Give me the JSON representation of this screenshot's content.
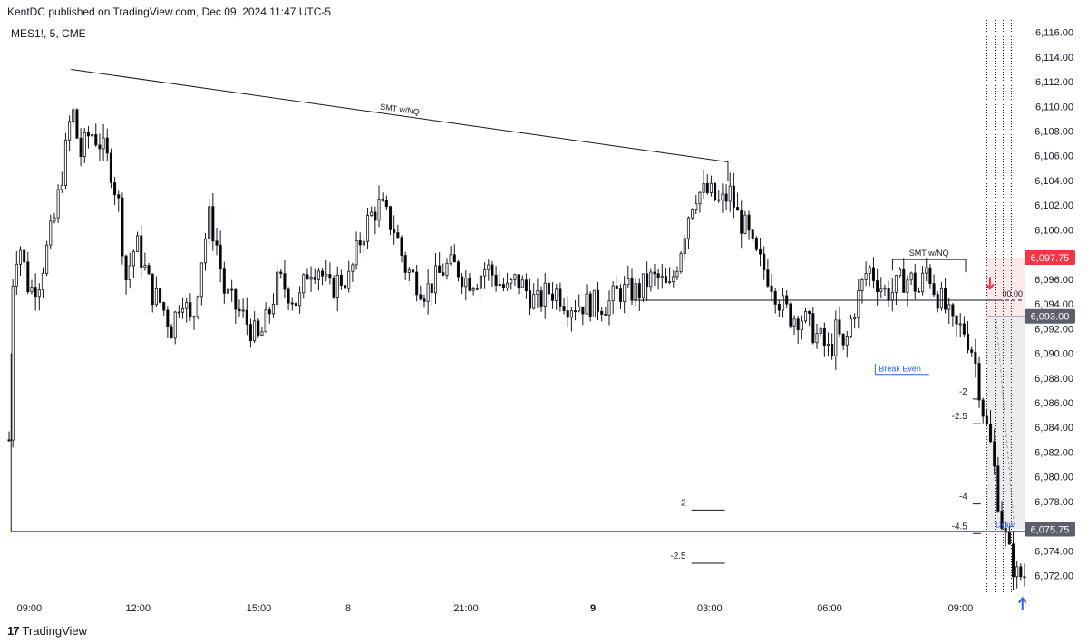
{
  "header": {
    "publisher_line": "KentDC published on TradingView.com, Dec 09, 2024 11:47 UTC-5",
    "symbol_line": "MES1!, 5, CME"
  },
  "footer": {
    "logo_mark": "17",
    "brand": "TradingView"
  },
  "colors": {
    "bull": "#ffffff",
    "bear": "#000000",
    "wick": "#131722",
    "blue_line": "#2962ff",
    "red_label": "#f23645",
    "gray_label": "#5d606b"
  },
  "chart_data": {
    "type": "candlestick",
    "symbol": "MES1!",
    "interval": "5",
    "exchange": "CME",
    "ylim": [
      6070.5,
      6117
    ],
    "y_ticks": [
      6116,
      6114,
      6112,
      6110,
      6108,
      6106,
      6104,
      6102,
      6100,
      6098,
      6096,
      6094,
      6092,
      6090,
      6088,
      6086,
      6084,
      6082,
      6080,
      6078,
      6074,
      6072
    ],
    "y_tick_labels": [
      "6,116.00",
      "6,114.00",
      "6,112.00",
      "6,110.00",
      "6,108.00",
      "6,106.00",
      "6,104.00",
      "6,102.00",
      "6,100.00",
      "6,098.00",
      "6,096.00",
      "6,094.00",
      "6,092.00",
      "6,090.00",
      "6,088.00",
      "6,086.00",
      "6,084.00",
      "6,082.00",
      "6,080.00",
      "6,078.00",
      "6,074.00",
      "6,072.00"
    ],
    "x_labels": [
      {
        "label": "09:00",
        "t": 0.02,
        "bold": false
      },
      {
        "label": "12:00",
        "t": 0.127,
        "bold": false
      },
      {
        "label": "15:00",
        "t": 0.246,
        "bold": false
      },
      {
        "label": "8",
        "t": 0.334,
        "bold": false
      },
      {
        "label": "21:00",
        "t": 0.45,
        "bold": false
      },
      {
        "label": "9",
        "t": 0.575,
        "bold": true
      },
      {
        "label": "03:00",
        "t": 0.69,
        "bold": false
      },
      {
        "label": "06:00",
        "t": 0.808,
        "bold": false
      },
      {
        "label": "09:00",
        "t": 0.937,
        "bold": false
      }
    ],
    "price_path": [
      [
        0.0,
        6083
      ],
      [
        0.004,
        6097
      ],
      [
        0.01,
        6099
      ],
      [
        0.02,
        6095
      ],
      [
        0.03,
        6096
      ],
      [
        0.045,
        6101
      ],
      [
        0.055,
        6106
      ],
      [
        0.062,
        6110
      ],
      [
        0.07,
        6106
      ],
      [
        0.08,
        6108
      ],
      [
        0.09,
        6107
      ],
      [
        0.1,
        6105
      ],
      [
        0.108,
        6102
      ],
      [
        0.115,
        6096
      ],
      [
        0.125,
        6099
      ],
      [
        0.133,
        6097
      ],
      [
        0.14,
        6095
      ],
      [
        0.15,
        6094
      ],
      [
        0.16,
        6092
      ],
      [
        0.17,
        6095
      ],
      [
        0.18,
        6092
      ],
      [
        0.19,
        6098
      ],
      [
        0.197,
        6101
      ],
      [
        0.204,
        6099
      ],
      [
        0.212,
        6095
      ],
      [
        0.22,
        6094
      ],
      [
        0.23,
        6093
      ],
      [
        0.238,
        6092
      ],
      [
        0.246,
        6091
      ],
      [
        0.255,
        6093
      ],
      [
        0.265,
        6096
      ],
      [
        0.275,
        6095
      ],
      [
        0.285,
        6094
      ],
      [
        0.295,
        6097
      ],
      [
        0.305,
        6097
      ],
      [
        0.315,
        6095
      ],
      [
        0.325,
        6096
      ],
      [
        0.335,
        6096
      ],
      [
        0.345,
        6099
      ],
      [
        0.355,
        6101
      ],
      [
        0.365,
        6102
      ],
      [
        0.372,
        6101
      ],
      [
        0.38,
        6100
      ],
      [
        0.39,
        6097
      ],
      [
        0.4,
        6096
      ],
      [
        0.41,
        6095
      ],
      [
        0.42,
        6096
      ],
      [
        0.43,
        6097
      ],
      [
        0.44,
        6097
      ],
      [
        0.45,
        6096
      ],
      [
        0.46,
        6096
      ],
      [
        0.47,
        6097
      ],
      [
        0.48,
        6096
      ],
      [
        0.49,
        6095
      ],
      [
        0.5,
        6096
      ],
      [
        0.51,
        6095
      ],
      [
        0.52,
        6094
      ],
      [
        0.53,
        6095
      ],
      [
        0.54,
        6095
      ],
      [
        0.55,
        6094
      ],
      [
        0.56,
        6094
      ],
      [
        0.57,
        6094
      ],
      [
        0.58,
        6094
      ],
      [
        0.59,
        6094
      ],
      [
        0.6,
        6095
      ],
      [
        0.61,
        6095
      ],
      [
        0.62,
        6095
      ],
      [
        0.63,
        6096
      ],
      [
        0.64,
        6096
      ],
      [
        0.65,
        6095
      ],
      [
        0.66,
        6098
      ],
      [
        0.668,
        6101
      ],
      [
        0.675,
        6103
      ],
      [
        0.682,
        6103
      ],
      [
        0.69,
        6103
      ],
      [
        0.7,
        6102
      ],
      [
        0.71,
        6103
      ],
      [
        0.718,
        6101
      ],
      [
        0.726,
        6100
      ],
      [
        0.734,
        6098
      ],
      [
        0.742,
        6097
      ],
      [
        0.75,
        6096
      ],
      [
        0.76,
        6094
      ],
      [
        0.77,
        6093
      ],
      [
        0.78,
        6093
      ],
      [
        0.79,
        6092
      ],
      [
        0.8,
        6091
      ],
      [
        0.808,
        6090
      ],
      [
        0.815,
        6092
      ],
      [
        0.822,
        6090
      ],
      [
        0.83,
        6093
      ],
      [
        0.838,
        6095
      ],
      [
        0.846,
        6097
      ],
      [
        0.854,
        6096
      ],
      [
        0.862,
        6095
      ],
      [
        0.87,
        6095
      ],
      [
        0.88,
        6096
      ],
      [
        0.888,
        6096
      ],
      [
        0.896,
        6095
      ],
      [
        0.904,
        6097
      ],
      [
        0.912,
        6095
      ],
      [
        0.92,
        6094
      ],
      [
        0.93,
        6092
      ],
      [
        0.94,
        6092
      ],
      [
        0.95,
        6090
      ],
      [
        0.96,
        6085
      ],
      [
        0.968,
        6082
      ],
      [
        0.976,
        6077
      ],
      [
        0.984,
        6074
      ],
      [
        0.992,
        6072
      ],
      [
        1.0,
        6072
      ]
    ],
    "lines": {
      "smt_main": {
        "label": "SMT w/NQ",
        "x1": 0.061,
        "y1": 6113,
        "x2": 0.708,
        "y2": 6105.5,
        "x3": 0.708,
        "y3": 6104
      },
      "smt_small": {
        "label": "SMT w/NQ",
        "x1": 0.87,
        "y1": 6097.6,
        "x2": 0.942,
        "y2": 6097.6
      },
      "horizontal_level": {
        "price": 6094.3,
        "x1": 0.615,
        "x2": 0.975
      },
      "break_even": {
        "label": "Break Even",
        "price": 6088.3,
        "x1": 0.853,
        "x2": 0.906
      },
      "blue_draw": {
        "price": 6075.6,
        "x1": 0.002,
        "x2": 1.0,
        "label": "Draw"
      },
      "left_vertical": {
        "x": 0.002,
        "p1": 6075.6,
        "p2": 6090
      }
    },
    "fib_markers": [
      {
        "label": "-2",
        "price": 6086.3,
        "x1": 0.949,
        "x2": 0.957
      },
      {
        "label": "-2.5",
        "price": 6084.3,
        "x1": 0.949,
        "x2": 0.957
      },
      {
        "label": "-4",
        "price": 6077.8,
        "x1": 0.949,
        "x2": 0.957
      },
      {
        "label": "-4.5",
        "price": 6075.4,
        "x1": 0.949,
        "x2": 0.957
      },
      {
        "label": "-2",
        "price": 6077.3,
        "x1": 0.672,
        "x2": 0.705
      },
      {
        "label": "-2.5",
        "price": 6073.0,
        "x1": 0.672,
        "x2": 0.705
      }
    ],
    "position_box": {
      "x1": 0.963,
      "x2": 1.0,
      "entry": 6093.0,
      "stop": 6097.75,
      "target": 6075.75,
      "stop_fill": "#fde8ea",
      "target_fill": "#ececee",
      "entry_label": "00.00"
    },
    "vertical_dotted": [
      0.963,
      0.971,
      0.979,
      0.987
    ],
    "price_labels": [
      {
        "text": "6,097.75",
        "price": 6097.75,
        "color": "#f23645"
      },
      {
        "text": "6,093.00",
        "price": 6093.0,
        "color": "#5d606b"
      },
      {
        "text": "6,075.75",
        "price": 6075.75,
        "color": "#5d606b"
      }
    ],
    "arrows": [
      {
        "dir": "down",
        "t": 0.966,
        "price": 6095.6,
        "color": "#f23645"
      },
      {
        "dir": "up",
        "t": 0.998,
        "price": 6069.8,
        "color": "#2962ff"
      }
    ]
  }
}
